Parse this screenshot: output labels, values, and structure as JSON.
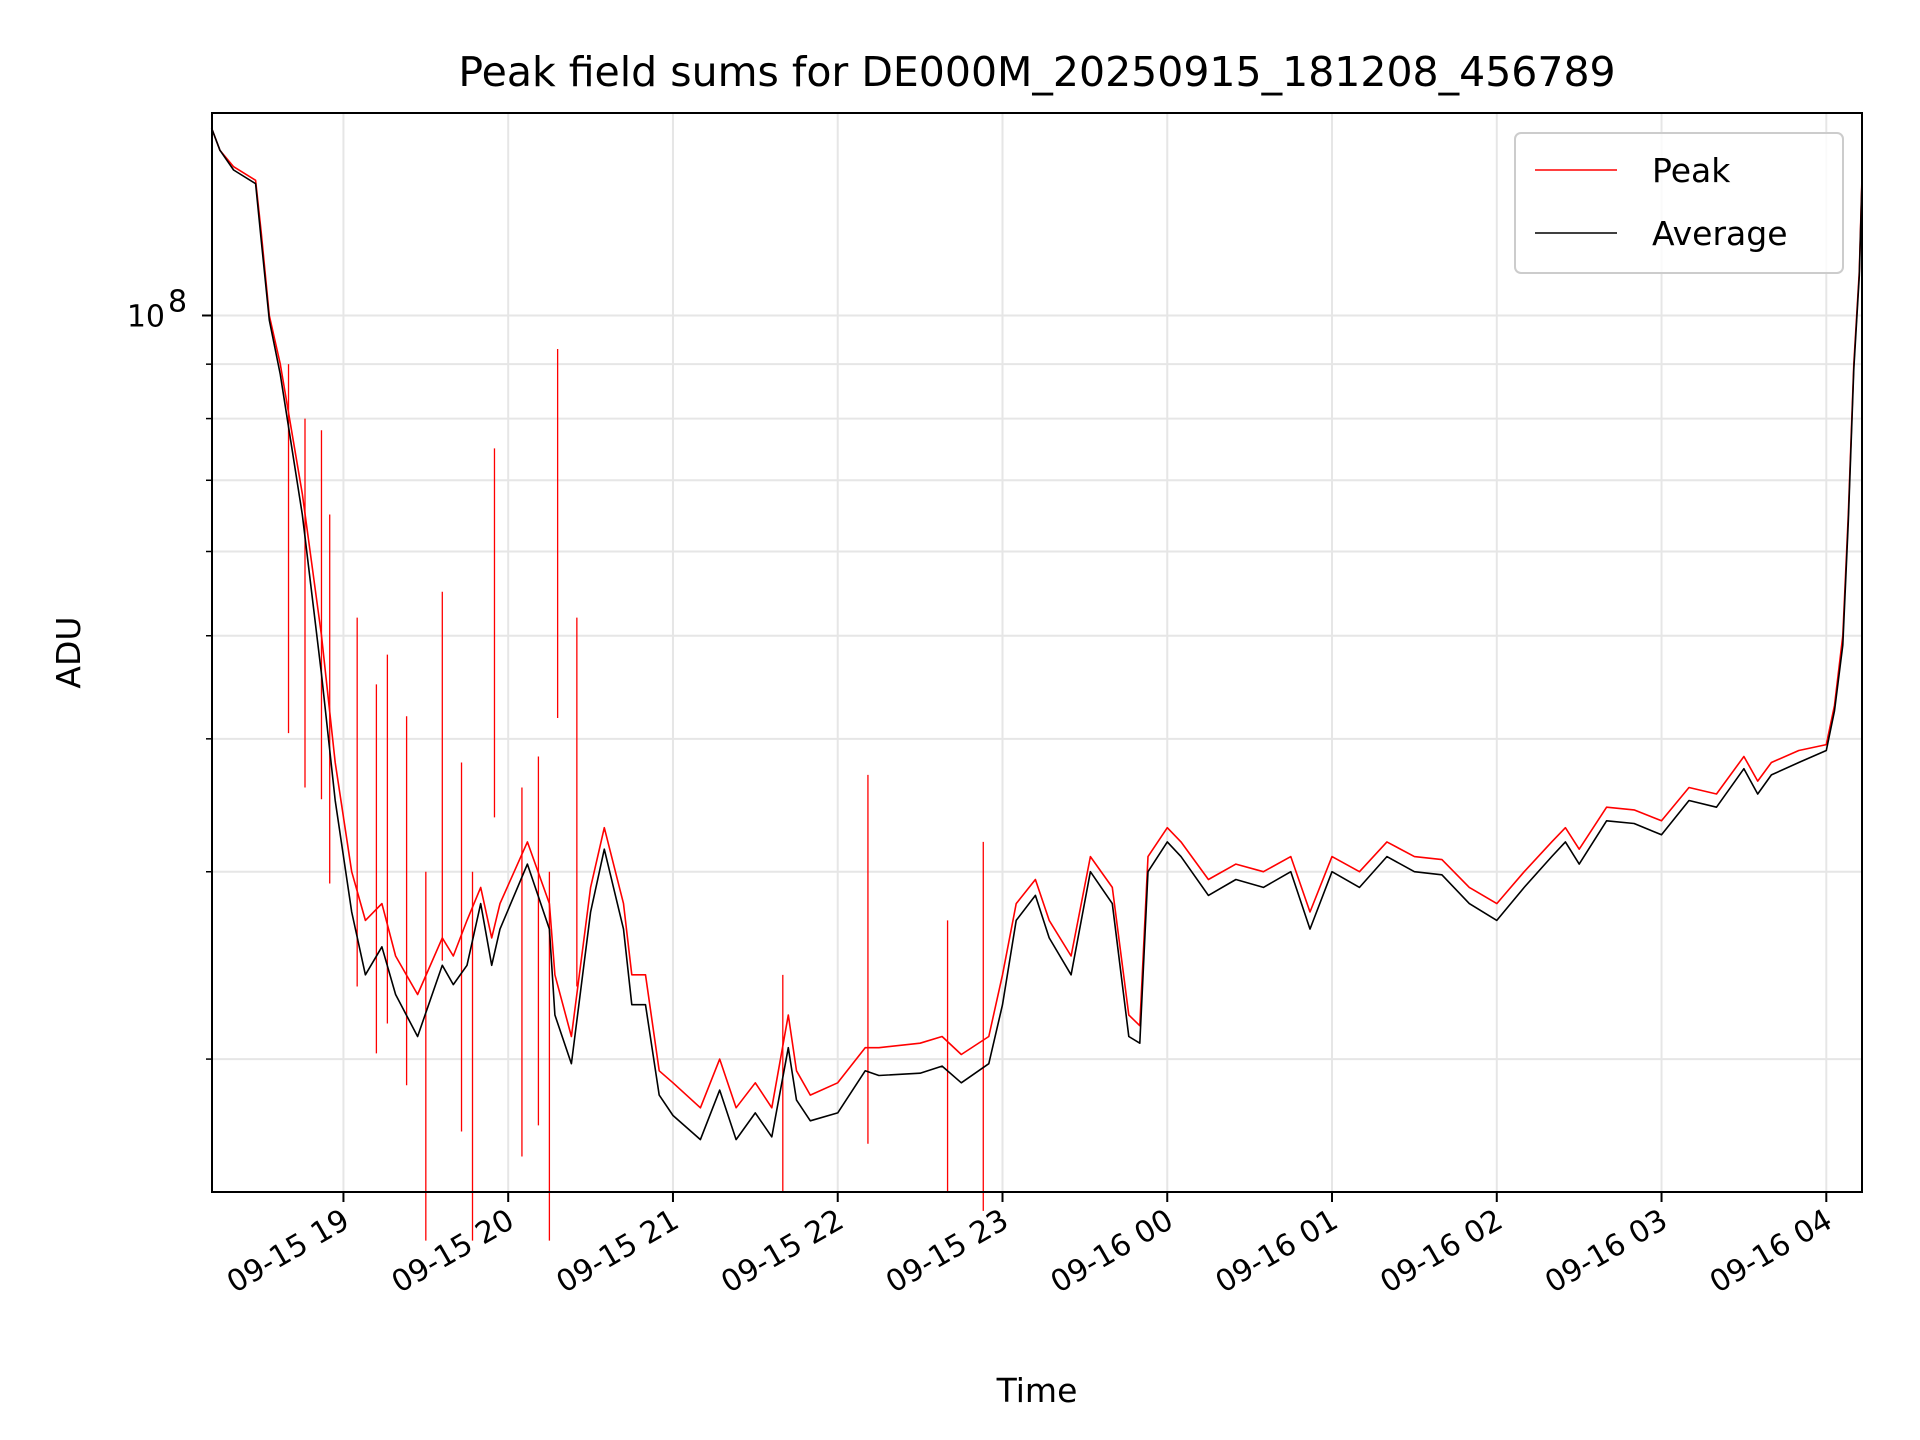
{
  "chart_data": {
    "type": "line",
    "title": "Peak field sums for DE000M_20250915_181208_456789",
    "xlabel": "Time",
    "ylabel": "ADU",
    "y_scale": "log",
    "ylim": [
      15000000,
      155000000
    ],
    "xlim": [
      "2025-09-15T18:12:08",
      "2025-09-16T04:13:00"
    ],
    "grid": true,
    "legend_position": "upper right",
    "x_ticks": [
      "09-15 19",
      "09-15 20",
      "09-15 21",
      "09-15 22",
      "09-15 23",
      "09-16 00",
      "09-16 01",
      "09-16 02",
      "09-16 03",
      "09-16 04"
    ],
    "x_tick_times": [
      "2025-09-15T19:00",
      "2025-09-15T20:00",
      "2025-09-15T21:00",
      "2025-09-15T22:00",
      "2025-09-15T23:00",
      "2025-09-16T00:00",
      "2025-09-16T01:00",
      "2025-09-16T02:00",
      "2025-09-16T03:00",
      "2025-09-16T04:00"
    ],
    "y_major_tick": {
      "value": 100000000,
      "base": "10",
      "exp": "8"
    },
    "y_minor_ticks": [
      20000000,
      30000000,
      40000000,
      50000000,
      60000000,
      70000000,
      80000000,
      90000000
    ],
    "series": [
      {
        "name": "Peak",
        "color": "#ff0000",
        "points": [
          [
            "2025-09-15T18:12",
            150000000
          ],
          [
            "2025-09-15T18:15",
            143000000
          ],
          [
            "2025-09-15T18:20",
            138000000
          ],
          [
            "2025-09-15T18:28",
            134000000
          ],
          [
            "2025-09-15T18:30",
            120000000
          ],
          [
            "2025-09-15T18:33",
            100000000
          ],
          [
            "2025-09-15T18:37",
            90000000
          ],
          [
            "2025-09-15T18:45",
            68000000
          ],
          [
            "2025-09-15T18:52",
            50000000
          ],
          [
            "2025-09-15T18:57",
            38000000
          ],
          [
            "2025-09-15T19:03",
            30000000
          ],
          [
            "2025-09-15T19:08",
            27000000
          ],
          [
            "2025-09-15T19:14",
            28000000
          ],
          [
            "2025-09-15T19:19",
            25000000
          ],
          [
            "2025-09-15T19:27",
            23000000
          ],
          [
            "2025-09-15T19:36",
            26000000
          ],
          [
            "2025-09-15T19:40",
            25000000
          ],
          [
            "2025-09-15T19:45",
            27000000
          ],
          [
            "2025-09-15T19:50",
            29000000
          ],
          [
            "2025-09-15T19:54",
            26000000
          ],
          [
            "2025-09-15T19:57",
            28000000
          ],
          [
            "2025-09-15T20:07",
            32000000
          ],
          [
            "2025-09-15T20:15",
            28000000
          ],
          [
            "2025-09-15T20:17",
            24000000
          ],
          [
            "2025-09-15T20:23",
            21000000
          ],
          [
            "2025-09-15T20:30",
            29000000
          ],
          [
            "2025-09-15T20:35",
            33000000
          ],
          [
            "2025-09-15T20:42",
            28000000
          ],
          [
            "2025-09-15T20:45",
            24000000
          ],
          [
            "2025-09-15T20:50",
            24000000
          ],
          [
            "2025-09-15T20:55",
            19500000
          ],
          [
            "2025-09-15T21:00",
            19000000
          ],
          [
            "2025-09-15T21:10",
            18000000
          ],
          [
            "2025-09-15T21:17",
            20000000
          ],
          [
            "2025-09-15T21:23",
            18000000
          ],
          [
            "2025-09-15T21:30",
            19000000
          ],
          [
            "2025-09-15T21:36",
            18000000
          ],
          [
            "2025-09-15T21:42",
            22000000
          ],
          [
            "2025-09-15T21:45",
            19500000
          ],
          [
            "2025-09-15T21:50",
            18500000
          ],
          [
            "2025-09-15T22:00",
            19000000
          ],
          [
            "2025-09-15T22:10",
            20500000
          ],
          [
            "2025-09-15T22:15",
            20500000
          ],
          [
            "2025-09-15T22:30",
            20700000
          ],
          [
            "2025-09-15T22:38",
            21000000
          ],
          [
            "2025-09-15T22:45",
            20200000
          ],
          [
            "2025-09-15T22:55",
            21000000
          ],
          [
            "2025-09-15T23:00",
            24000000
          ],
          [
            "2025-09-15T23:05",
            28000000
          ],
          [
            "2025-09-15T23:12",
            29500000
          ],
          [
            "2025-09-15T23:17",
            27000000
          ],
          [
            "2025-09-15T23:25",
            25000000
          ],
          [
            "2025-09-15T23:32",
            31000000
          ],
          [
            "2025-09-15T23:40",
            29000000
          ],
          [
            "2025-09-15T23:46",
            22000000
          ],
          [
            "2025-09-15T23:50",
            21500000
          ],
          [
            "2025-09-15T23:53",
            31000000
          ],
          [
            "2025-09-16T00:00",
            33000000
          ],
          [
            "2025-09-16T00:05",
            32000000
          ],
          [
            "2025-09-16T00:15",
            29500000
          ],
          [
            "2025-09-16T00:25",
            30500000
          ],
          [
            "2025-09-16T00:35",
            30000000
          ],
          [
            "2025-09-16T00:45",
            31000000
          ],
          [
            "2025-09-16T00:52",
            27500000
          ],
          [
            "2025-09-16T01:00",
            31000000
          ],
          [
            "2025-09-16T01:10",
            30000000
          ],
          [
            "2025-09-16T01:20",
            32000000
          ],
          [
            "2025-09-16T01:30",
            31000000
          ],
          [
            "2025-09-16T01:40",
            30800000
          ],
          [
            "2025-09-16T01:50",
            29000000
          ],
          [
            "2025-09-16T02:00",
            28000000
          ],
          [
            "2025-09-16T02:10",
            30000000
          ],
          [
            "2025-09-16T02:20",
            32000000
          ],
          [
            "2025-09-16T02:25",
            33000000
          ],
          [
            "2025-09-16T02:30",
            31500000
          ],
          [
            "2025-09-16T02:40",
            34500000
          ],
          [
            "2025-09-16T02:50",
            34300000
          ],
          [
            "2025-09-16T03:00",
            33500000
          ],
          [
            "2025-09-16T03:10",
            36000000
          ],
          [
            "2025-09-16T03:20",
            35500000
          ],
          [
            "2025-09-16T03:30",
            38500000
          ],
          [
            "2025-09-16T03:35",
            36500000
          ],
          [
            "2025-09-16T03:40",
            38000000
          ],
          [
            "2025-09-16T03:50",
            39000000
          ],
          [
            "2025-09-16T04:00",
            39500000
          ],
          [
            "2025-09-16T04:03",
            43000000
          ],
          [
            "2025-09-16T04:06",
            50000000
          ],
          [
            "2025-09-16T04:08",
            65000000
          ],
          [
            "2025-09-16T04:10",
            90000000
          ],
          [
            "2025-09-16T04:12",
            110000000
          ],
          [
            "2025-09-16T04:13",
            135000000
          ]
        ],
        "spikes": [
          [
            "2025-09-15T18:40",
            90000000
          ],
          [
            "2025-09-15T18:46",
            80000000
          ],
          [
            "2025-09-15T18:52",
            78000000
          ],
          [
            "2025-09-15T18:55",
            65000000
          ],
          [
            "2025-09-15T19:05",
            52000000
          ],
          [
            "2025-09-15T19:12",
            45000000
          ],
          [
            "2025-09-15T19:16",
            48000000
          ],
          [
            "2025-09-15T19:23",
            42000000
          ],
          [
            "2025-09-15T19:30",
            30000000
          ],
          [
            "2025-09-15T19:36",
            55000000
          ],
          [
            "2025-09-15T19:43",
            38000000
          ],
          [
            "2025-09-15T19:47",
            30000000
          ],
          [
            "2025-09-15T19:55",
            75000000
          ],
          [
            "2025-09-15T20:05",
            36000000
          ],
          [
            "2025-09-15T20:11",
            38500000
          ],
          [
            "2025-09-15T20:15",
            30000000
          ],
          [
            "2025-09-15T20:18",
            93000000
          ],
          [
            "2025-09-15T20:25",
            52000000
          ],
          [
            "2025-09-15T21:40",
            24000000
          ],
          [
            "2025-09-15T22:11",
            37000000
          ],
          [
            "2025-09-15T22:40",
            27000000
          ],
          [
            "2025-09-15T22:53",
            32000000
          ]
        ]
      },
      {
        "name": "Average",
        "color": "#000000",
        "points": [
          [
            "2025-09-15T18:12",
            150000000
          ],
          [
            "2025-09-15T18:15",
            143000000
          ],
          [
            "2025-09-15T18:20",
            137000000
          ],
          [
            "2025-09-15T18:28",
            133000000
          ],
          [
            "2025-09-15T18:30",
            118000000
          ],
          [
            "2025-09-15T18:33",
            99000000
          ],
          [
            "2025-09-15T18:37",
            88000000
          ],
          [
            "2025-09-15T18:45",
            65000000
          ],
          [
            "2025-09-15T18:52",
            46000000
          ],
          [
            "2025-09-15T18:57",
            35000000
          ],
          [
            "2025-09-15T19:03",
            27500000
          ],
          [
            "2025-09-15T19:08",
            24000000
          ],
          [
            "2025-09-15T19:14",
            25500000
          ],
          [
            "2025-09-15T19:19",
            23000000
          ],
          [
            "2025-09-15T19:27",
            21000000
          ],
          [
            "2025-09-15T19:36",
            24500000
          ],
          [
            "2025-09-15T19:40",
            23500000
          ],
          [
            "2025-09-15T19:45",
            24500000
          ],
          [
            "2025-09-15T19:50",
            28000000
          ],
          [
            "2025-09-15T19:54",
            24500000
          ],
          [
            "2025-09-15T19:57",
            26500000
          ],
          [
            "2025-09-15T20:07",
            30500000
          ],
          [
            "2025-09-15T20:15",
            26500000
          ],
          [
            "2025-09-15T20:17",
            22000000
          ],
          [
            "2025-09-15T20:23",
            19800000
          ],
          [
            "2025-09-15T20:30",
            27500000
          ],
          [
            "2025-09-15T20:35",
            31500000
          ],
          [
            "2025-09-15T20:42",
            26500000
          ],
          [
            "2025-09-15T20:45",
            22500000
          ],
          [
            "2025-09-15T20:50",
            22500000
          ],
          [
            "2025-09-15T20:55",
            18500000
          ],
          [
            "2025-09-15T21:00",
            17700000
          ],
          [
            "2025-09-15T21:10",
            16800000
          ],
          [
            "2025-09-15T21:17",
            18700000
          ],
          [
            "2025-09-15T21:23",
            16800000
          ],
          [
            "2025-09-15T21:30",
            17800000
          ],
          [
            "2025-09-15T21:36",
            16900000
          ],
          [
            "2025-09-15T21:42",
            20500000
          ],
          [
            "2025-09-15T21:45",
            18300000
          ],
          [
            "2025-09-15T21:50",
            17500000
          ],
          [
            "2025-09-15T22:00",
            17800000
          ],
          [
            "2025-09-15T22:10",
            19500000
          ],
          [
            "2025-09-15T22:15",
            19300000
          ],
          [
            "2025-09-15T22:30",
            19400000
          ],
          [
            "2025-09-15T22:38",
            19700000
          ],
          [
            "2025-09-15T22:45",
            19000000
          ],
          [
            "2025-09-15T22:55",
            19800000
          ],
          [
            "2025-09-15T23:00",
            22500000
          ],
          [
            "2025-09-15T23:05",
            27000000
          ],
          [
            "2025-09-15T23:12",
            28500000
          ],
          [
            "2025-09-15T23:17",
            26000000
          ],
          [
            "2025-09-15T23:25",
            24000000
          ],
          [
            "2025-09-15T23:32",
            30000000
          ],
          [
            "2025-09-15T23:40",
            28000000
          ],
          [
            "2025-09-15T23:46",
            21000000
          ],
          [
            "2025-09-15T23:50",
            20700000
          ],
          [
            "2025-09-15T23:53",
            30000000
          ],
          [
            "2025-09-16T00:00",
            32000000
          ],
          [
            "2025-09-16T00:05",
            31000000
          ],
          [
            "2025-09-16T00:15",
            28500000
          ],
          [
            "2025-09-16T00:25",
            29500000
          ],
          [
            "2025-09-16T00:35",
            29000000
          ],
          [
            "2025-09-16T00:45",
            30000000
          ],
          [
            "2025-09-16T00:52",
            26500000
          ],
          [
            "2025-09-16T01:00",
            30000000
          ],
          [
            "2025-09-16T01:10",
            29000000
          ],
          [
            "2025-09-16T01:20",
            31000000
          ],
          [
            "2025-09-16T01:30",
            30000000
          ],
          [
            "2025-09-16T01:40",
            29800000
          ],
          [
            "2025-09-16T01:50",
            28000000
          ],
          [
            "2025-09-16T02:00",
            27000000
          ],
          [
            "2025-09-16T02:10",
            29000000
          ],
          [
            "2025-09-16T02:20",
            31000000
          ],
          [
            "2025-09-16T02:25",
            32000000
          ],
          [
            "2025-09-16T02:30",
            30500000
          ],
          [
            "2025-09-16T02:40",
            33500000
          ],
          [
            "2025-09-16T02:50",
            33300000
          ],
          [
            "2025-09-16T03:00",
            32500000
          ],
          [
            "2025-09-16T03:10",
            35000000
          ],
          [
            "2025-09-16T03:20",
            34500000
          ],
          [
            "2025-09-16T03:30",
            37500000
          ],
          [
            "2025-09-16T03:35",
            35500000
          ],
          [
            "2025-09-16T03:40",
            37000000
          ],
          [
            "2025-09-16T03:50",
            38000000
          ],
          [
            "2025-09-16T04:00",
            39000000
          ],
          [
            "2025-09-16T04:03",
            42500000
          ],
          [
            "2025-09-16T04:06",
            49000000
          ],
          [
            "2025-09-16T04:08",
            64000000
          ],
          [
            "2025-09-16T04:10",
            89000000
          ],
          [
            "2025-09-16T04:12",
            109000000
          ],
          [
            "2025-09-16T04:13",
            134000000
          ]
        ]
      }
    ]
  }
}
